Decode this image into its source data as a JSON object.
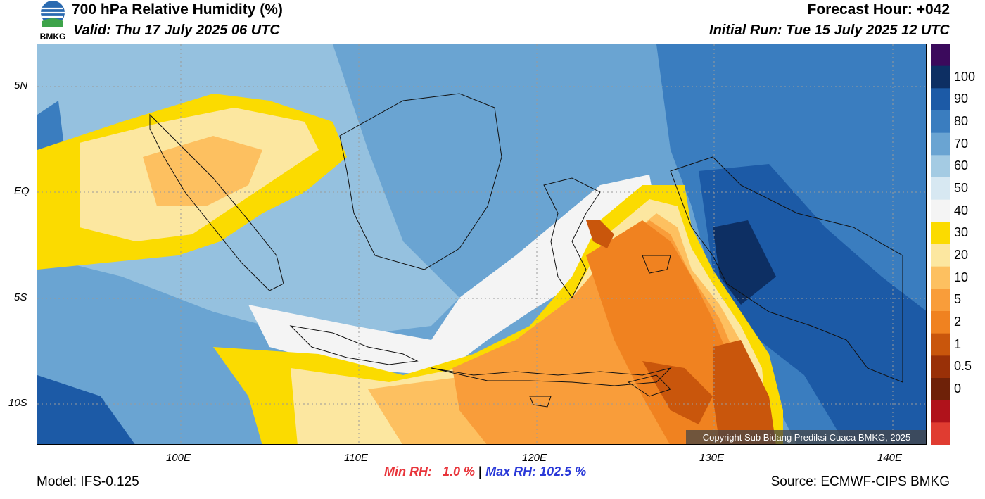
{
  "header": {
    "title": "700 hPa Relative Humidity (%)",
    "valid": "Valid: Thu 17 July 2025 06 UTC",
    "forecast_hour": "Forecast Hour: +042",
    "initial_run": "Initial Run: Tue 15 July 2025 12 UTC"
  },
  "logo": {
    "text": "BMKG"
  },
  "map": {
    "lat_labels": [
      "5N",
      "EQ",
      "5S",
      "10S"
    ],
    "lon_labels": [
      "100E",
      "110E",
      "120E",
      "130E",
      "140E"
    ],
    "copyright": "Copyright Sub Bidang Prediksi Cuaca BMKG, 2025"
  },
  "colorbar": {
    "labels": [
      "100",
      "90",
      "80",
      "70",
      "60",
      "50",
      "40",
      "30",
      "20",
      "10",
      "5",
      "2",
      "1",
      "0.5",
      "0"
    ],
    "colors": [
      "#3b0a5c",
      "#0d2f63",
      "#1c5aa6",
      "#3a7dbf",
      "#6aa4d2",
      "#a4cbe3",
      "#d7e8f2",
      "#f4f4f4",
      "#fbdb00",
      "#fce7a0",
      "#fdc060",
      "#f99d3a",
      "#f08220",
      "#c9560c",
      "#993007",
      "#6e2108",
      "#b0121b",
      "#e03c31"
    ]
  },
  "footer": {
    "model": "Model: IFS-0.125",
    "min_rh": "Min RH:   1.0 %",
    "separator": "|",
    "max_rh": "Max RH: 102.5 %",
    "source": "Source: ECMWF-CIPS BMKG"
  }
}
